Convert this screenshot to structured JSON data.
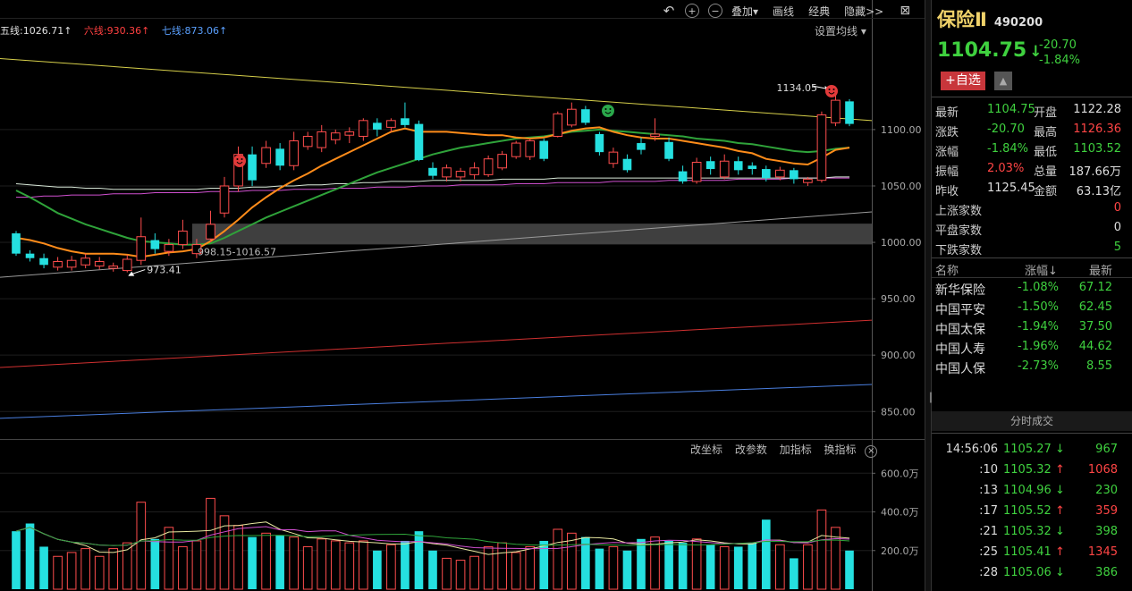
{
  "toolbar": {
    "overlay_label": "叠加",
    "draw_label": "画线",
    "classic_label": "经典",
    "hide_label": "隐藏>>"
  },
  "ma_legend": [
    {
      "label": "五线:1026.71↑",
      "color": "#e0e0e0"
    },
    {
      "label": "六线:930.36↑",
      "color": "#ff4040"
    },
    {
      "label": "七线:873.06↑",
      "color": "#5aa0ff"
    }
  ],
  "set_ma_label": "设置均线 ▾",
  "volume_tools": [
    "改坐标",
    "改参数",
    "加指标",
    "换指标"
  ],
  "price_axis": {
    "ticks": [
      "1100.00",
      "1050.00",
      "1000.00",
      "950.00",
      "900.00",
      "850.00"
    ],
    "tick_values": [
      1100,
      1050,
      1000,
      950,
      900,
      850
    ]
  },
  "volume_axis": {
    "ticks": [
      "600.0万",
      "400.0万",
      "200.0万"
    ],
    "tick_values": [
      600,
      400,
      200
    ]
  },
  "annotations": {
    "high_label": "1134.05",
    "low_label": "973.41",
    "gap_label": "998.15-1016.57"
  },
  "gap_band": {
    "low": 998.15,
    "high": 1016.57
  },
  "chart_data": {
    "type": "candlestick",
    "price_range": [
      828,
      1180
    ],
    "volume_range": [
      0,
      680
    ],
    "candles": [
      {
        "o": 1008,
        "c": 990,
        "h": 1010,
        "l": 988,
        "v": 300
      },
      {
        "o": 990,
        "c": 986,
        "h": 993,
        "l": 983,
        "v": 340
      },
      {
        "o": 986,
        "c": 980,
        "h": 990,
        "l": 977,
        "v": 220
      },
      {
        "o": 978,
        "c": 983,
        "h": 987,
        "l": 975,
        "v": 170
      },
      {
        "o": 978,
        "c": 984,
        "h": 988,
        "l": 975,
        "v": 190
      },
      {
        "o": 980,
        "c": 986,
        "h": 990,
        "l": 977,
        "v": 210
      },
      {
        "o": 979,
        "c": 983,
        "h": 987,
        "l": 976,
        "v": 170
      },
      {
        "o": 977,
        "c": 979,
        "h": 982,
        "l": 974,
        "v": 210
      },
      {
        "o": 975,
        "c": 985,
        "h": 989,
        "l": 973.41,
        "v": 240
      },
      {
        "o": 984,
        "c": 1005,
        "h": 1022,
        "l": 980,
        "v": 450
      },
      {
        "o": 1002,
        "c": 994,
        "h": 1008,
        "l": 990,
        "v": 260
      },
      {
        "o": 992,
        "c": 998,
        "h": 1003,
        "l": 988,
        "v": 320
      },
      {
        "o": 998,
        "c": 1010,
        "h": 1020,
        "l": 994,
        "v": 220
      },
      {
        "o": 990,
        "c": 998,
        "h": 1003,
        "l": 986,
        "v": 250
      },
      {
        "o": 1003,
        "c": 1016,
        "h": 1028,
        "l": 1000,
        "v": 470
      },
      {
        "o": 1026,
        "c": 1050,
        "h": 1058,
        "l": 1022,
        "v": 380
      },
      {
        "o": 1050,
        "c": 1078,
        "h": 1085,
        "l": 1045,
        "v": 330
      },
      {
        "o": 1078,
        "c": 1055,
        "h": 1085,
        "l": 1050,
        "v": 270
      },
      {
        "o": 1070,
        "c": 1084,
        "h": 1090,
        "l": 1066,
        "v": 290
      },
      {
        "o": 1083,
        "c": 1068,
        "h": 1088,
        "l": 1064,
        "v": 280
      },
      {
        "o": 1068,
        "c": 1090,
        "h": 1098,
        "l": 1064,
        "v": 270
      },
      {
        "o": 1085,
        "c": 1094,
        "h": 1098,
        "l": 1082,
        "v": 220
      },
      {
        "o": 1084,
        "c": 1098,
        "h": 1104,
        "l": 1080,
        "v": 260
      },
      {
        "o": 1091,
        "c": 1097,
        "h": 1100,
        "l": 1087,
        "v": 250
      },
      {
        "o": 1095,
        "c": 1098,
        "h": 1102,
        "l": 1088,
        "v": 240
      },
      {
        "o": 1094,
        "c": 1108,
        "h": 1110,
        "l": 1090,
        "v": 250
      },
      {
        "o": 1106,
        "c": 1100,
        "h": 1110,
        "l": 1094,
        "v": 200
      },
      {
        "o": 1102,
        "c": 1108,
        "h": 1110,
        "l": 1098,
        "v": 230
      },
      {
        "o": 1110,
        "c": 1104,
        "h": 1124,
        "l": 1102,
        "v": 250
      },
      {
        "o": 1105,
        "c": 1073,
        "h": 1108,
        "l": 1072,
        "v": 300
      },
      {
        "o": 1066,
        "c": 1059,
        "h": 1071,
        "l": 1056,
        "v": 200
      },
      {
        "o": 1058,
        "c": 1066,
        "h": 1069,
        "l": 1054,
        "v": 160
      },
      {
        "o": 1058,
        "c": 1063,
        "h": 1066,
        "l": 1054,
        "v": 150
      },
      {
        "o": 1060,
        "c": 1066,
        "h": 1071,
        "l": 1056,
        "v": 170
      },
      {
        "o": 1060,
        "c": 1074,
        "h": 1077,
        "l": 1058,
        "v": 220
      },
      {
        "o": 1066,
        "c": 1078,
        "h": 1081,
        "l": 1064,
        "v": 240
      },
      {
        "o": 1076,
        "c": 1088,
        "h": 1090,
        "l": 1074,
        "v": 190
      },
      {
        "o": 1076,
        "c": 1090,
        "h": 1092,
        "l": 1073,
        "v": 220
      },
      {
        "o": 1090,
        "c": 1074,
        "h": 1092,
        "l": 1072,
        "v": 250
      },
      {
        "o": 1094,
        "c": 1114,
        "h": 1116,
        "l": 1093,
        "v": 310
      },
      {
        "o": 1104,
        "c": 1118,
        "h": 1124,
        "l": 1102,
        "v": 290
      },
      {
        "o": 1118,
        "c": 1106,
        "h": 1121,
        "l": 1104,
        "v": 270
      },
      {
        "o": 1096,
        "c": 1080,
        "h": 1098,
        "l": 1077,
        "v": 210
      },
      {
        "o": 1070,
        "c": 1080,
        "h": 1084,
        "l": 1066,
        "v": 220
      },
      {
        "o": 1074,
        "c": 1064,
        "h": 1078,
        "l": 1062,
        "v": 200
      },
      {
        "o": 1088,
        "c": 1082,
        "h": 1093,
        "l": 1078,
        "v": 260
      },
      {
        "o": 1094,
        "c": 1096,
        "h": 1110,
        "l": 1090,
        "v": 270
      },
      {
        "o": 1089,
        "c": 1074,
        "h": 1093,
        "l": 1072,
        "v": 250
      },
      {
        "o": 1063,
        "c": 1054,
        "h": 1068,
        "l": 1052,
        "v": 240
      },
      {
        "o": 1054,
        "c": 1071,
        "h": 1075,
        "l": 1052,
        "v": 260
      },
      {
        "o": 1072,
        "c": 1065,
        "h": 1076,
        "l": 1060,
        "v": 230
      },
      {
        "o": 1058,
        "c": 1072,
        "h": 1078,
        "l": 1056,
        "v": 220
      },
      {
        "o": 1072,
        "c": 1064,
        "h": 1076,
        "l": 1060,
        "v": 220
      },
      {
        "o": 1068,
        "c": 1065,
        "h": 1071,
        "l": 1060,
        "v": 240
      },
      {
        "o": 1065,
        "c": 1057,
        "h": 1068,
        "l": 1054,
        "v": 360
      },
      {
        "o": 1058,
        "c": 1064,
        "h": 1067,
        "l": 1055,
        "v": 230
      },
      {
        "o": 1064,
        "c": 1056,
        "h": 1066,
        "l": 1052,
        "v": 160
      },
      {
        "o": 1053,
        "c": 1056,
        "h": 1058,
        "l": 1050,
        "v": 230
      },
      {
        "o": 1055,
        "c": 1113,
        "h": 1116,
        "l": 1053,
        "v": 410
      },
      {
        "o": 1106,
        "c": 1126,
        "h": 1134.05,
        "l": 1103,
        "v": 320
      },
      {
        "o": 1125,
        "c": 1105,
        "h": 1127,
        "l": 1103,
        "v": 200
      }
    ],
    "ma_short": [
      1004,
      1002,
      999,
      995,
      992,
      990,
      990,
      990,
      989,
      987,
      989,
      991,
      992,
      994,
      1001,
      1010,
      1020,
      1031,
      1040,
      1048,
      1055,
      1061,
      1068,
      1074,
      1080,
      1086,
      1092,
      1098,
      1101,
      1098,
      1098,
      1098,
      1097,
      1096,
      1095,
      1095,
      1093,
      1092,
      1093,
      1096,
      1099,
      1101,
      1102,
      1098,
      1095,
      1093,
      1092,
      1092,
      1090,
      1088,
      1086,
      1084,
      1081,
      1079,
      1074,
      1072,
      1070,
      1069,
      1075,
      1082,
      1084
    ],
    "ma_mid": [
      1046,
      1040,
      1033,
      1026,
      1021,
      1016,
      1012,
      1008,
      1004,
      1001,
      1000,
      999,
      998,
      998,
      999,
      1004,
      1010,
      1016,
      1022,
      1027,
      1032,
      1037,
      1042,
      1047,
      1052,
      1057,
      1062,
      1066,
      1070,
      1074,
      1078,
      1081,
      1084,
      1086,
      1088,
      1090,
      1092,
      1093,
      1094,
      1096,
      1098,
      1099,
      1100,
      1099,
      1098,
      1097,
      1096,
      1095,
      1094,
      1092,
      1091,
      1090,
      1088,
      1087,
      1085,
      1083,
      1081,
      1080,
      1081,
      1083,
      1084
    ],
    "ma_long": [
      1052,
      1051,
      1050,
      1049,
      1049,
      1048,
      1048,
      1047,
      1047,
      1047,
      1047,
      1047,
      1047,
      1047,
      1048,
      1048,
      1048,
      1049,
      1049,
      1050,
      1050,
      1051,
      1051,
      1052,
      1052,
      1053,
      1053,
      1054,
      1054,
      1054,
      1055,
      1055,
      1055,
      1055,
      1055,
      1056,
      1056,
      1056,
      1056,
      1057,
      1057,
      1057,
      1057,
      1057,
      1057,
      1057,
      1057,
      1057,
      1057,
      1057,
      1057,
      1057,
      1057,
      1057,
      1057,
      1057,
      1057,
      1057,
      1057,
      1058,
      1058
    ],
    "ma_purple": [
      1040,
      1040,
      1041,
      1041,
      1042,
      1042,
      1042,
      1043,
      1043,
      1043,
      1044,
      1044,
      1044,
      1044,
      1045,
      1045,
      1045,
      1046,
      1046,
      1046,
      1047,
      1047,
      1047,
      1048,
      1048,
      1048,
      1049,
      1049,
      1049,
      1050,
      1050,
      1050,
      1051,
      1051,
      1051,
      1051,
      1052,
      1052,
      1052,
      1053,
      1053,
      1053,
      1053,
      1054,
      1054,
      1054,
      1054,
      1055,
      1055,
      1055,
      1055,
      1055,
      1056,
      1056,
      1056,
      1056,
      1057,
      1057,
      1057,
      1057,
      1057
    ],
    "line_yellow": {
      "start": 1163,
      "end": 1108
    },
    "line_gray": {
      "start": 969,
      "end": 1027
    },
    "line_red": {
      "start": 889,
      "end": 931
    },
    "line_blue": {
      "start": 844,
      "end": 874
    }
  },
  "stock": {
    "name": "保险Ⅱ",
    "code": "490200",
    "price": "1104.75",
    "arrow": "↓",
    "change": "-20.70",
    "change_pct": "-1.84%",
    "fav_label": "+自选",
    "bell_icon": "bell-icon"
  },
  "quote": {
    "rows": [
      {
        "l1": "最新",
        "v1": "1104.75",
        "c1": "green",
        "l2": "开盘",
        "v2": "1122.28",
        "c2": "white"
      },
      {
        "l1": "涨跌",
        "v1": "-20.70",
        "c1": "green",
        "l2": "最高",
        "v2": "1126.36",
        "c2": "red"
      },
      {
        "l1": "涨幅",
        "v1": "-1.84%",
        "c1": "green",
        "l2": "最低",
        "v2": "1103.52",
        "c2": "green"
      },
      {
        "l1": "振幅",
        "v1": "2.03%",
        "c1": "red",
        "l2": "总量",
        "v2": "187.66万",
        "c2": "white"
      },
      {
        "l1": "昨收",
        "v1": "1125.45",
        "c1": "white",
        "l2": "金额",
        "v2": "63.13亿",
        "c2": "white"
      }
    ],
    "breadth": [
      {
        "label": "上涨家数",
        "value": "0",
        "color": "red"
      },
      {
        "label": "平盘家数",
        "value": "0",
        "color": "white"
      },
      {
        "label": "下跌家数",
        "value": "5",
        "color": "green"
      }
    ]
  },
  "members": {
    "headers": {
      "name": "名称",
      "pct": "涨幅↓",
      "last": "最新"
    },
    "rows": [
      {
        "name": "新华保险",
        "pct": "-1.08%",
        "last": "67.12"
      },
      {
        "name": "中国平安",
        "pct": "-1.50%",
        "last": "62.45"
      },
      {
        "name": "中国太保",
        "pct": "-1.94%",
        "last": "37.50"
      },
      {
        "name": "中国人寿",
        "pct": "-1.96%",
        "last": "44.62"
      },
      {
        "name": "中国人保",
        "pct": "-2.73%",
        "last": "8.55"
      }
    ]
  },
  "ticks": {
    "title": "分时成交",
    "rows": [
      {
        "time": "14:56:06",
        "price": "1105.27",
        "dir": "↓",
        "vol": "967",
        "color": "green"
      },
      {
        "time": ":10",
        "price": "1105.32",
        "dir": "↑",
        "vol": "1068",
        "color": "red"
      },
      {
        "time": ":13",
        "price": "1104.96",
        "dir": "↓",
        "vol": "230",
        "color": "green"
      },
      {
        "time": ":17",
        "price": "1105.52",
        "dir": "↑",
        "vol": "359",
        "color": "red"
      },
      {
        "time": ":21",
        "price": "1105.32",
        "dir": "↓",
        "vol": "398",
        "color": "green"
      },
      {
        "time": ":25",
        "price": "1105.41",
        "dir": "↑",
        "vol": "1345",
        "color": "red"
      },
      {
        "time": ":28",
        "price": "1105.06",
        "dir": "↓",
        "vol": "386",
        "color": "green"
      }
    ]
  }
}
